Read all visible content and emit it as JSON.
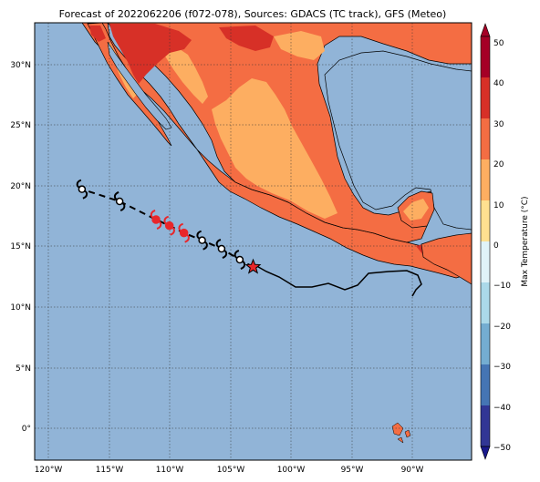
{
  "title": "Forecast of 2022062206 (f072-078), Sources: GDACS (TC track), GFS (Meteo)",
  "map": {
    "lon_range": [
      -121.0,
      -85.0
    ],
    "lat_range": [
      -2.5,
      33.5
    ],
    "lon_ticks": [
      "120°W",
      "115°W",
      "110°W",
      "105°W",
      "100°W",
      "95°W",
      "90°W"
    ],
    "lat_ticks": [
      "30°N",
      "25°N",
      "20°N",
      "15°N",
      "10°N",
      "5°N",
      "0°"
    ],
    "ocean_color": "#91b4d7",
    "gridlines": true
  },
  "colorbar": {
    "label": "Max Temperature (°C)",
    "ticks": [
      "50",
      "40",
      "30",
      "20",
      "10",
      "0",
      "−10",
      "−20",
      "−30",
      "−40",
      "−50"
    ],
    "colors": [
      "#f3f0ef",
      "#a50026",
      "#d73027",
      "#f46d43",
      "#fdae61",
      "#fee090",
      "#e0f3f8",
      "#abd9e9",
      "#74add1",
      "#4575b4",
      "#313695"
    ]
  },
  "track": {
    "past_path_color": "#000000",
    "forecast_color": "#000000",
    "current_marker_color": "#e8262a",
    "forecast_points": [
      {
        "lon": -103.0,
        "lat": 13.4,
        "type": "current"
      },
      {
        "lon": -104.1,
        "lat": 14.0,
        "type": "storm",
        "color": "black"
      },
      {
        "lon": -105.6,
        "lat": 14.9,
        "type": "storm",
        "color": "black"
      },
      {
        "lon": -107.2,
        "lat": 15.6,
        "type": "storm",
        "color": "black"
      },
      {
        "lon": -108.7,
        "lat": 16.2,
        "type": "hurricane",
        "color": "red"
      },
      {
        "lon": -109.9,
        "lat": 16.8,
        "type": "hurricane",
        "color": "red"
      },
      {
        "lon": -111.0,
        "lat": 17.3,
        "type": "hurricane",
        "color": "red"
      },
      {
        "lon": -114.0,
        "lat": 18.8,
        "type": "storm",
        "color": "black"
      },
      {
        "lon": -117.1,
        "lat": 19.8,
        "type": "storm",
        "color": "black"
      }
    ]
  }
}
